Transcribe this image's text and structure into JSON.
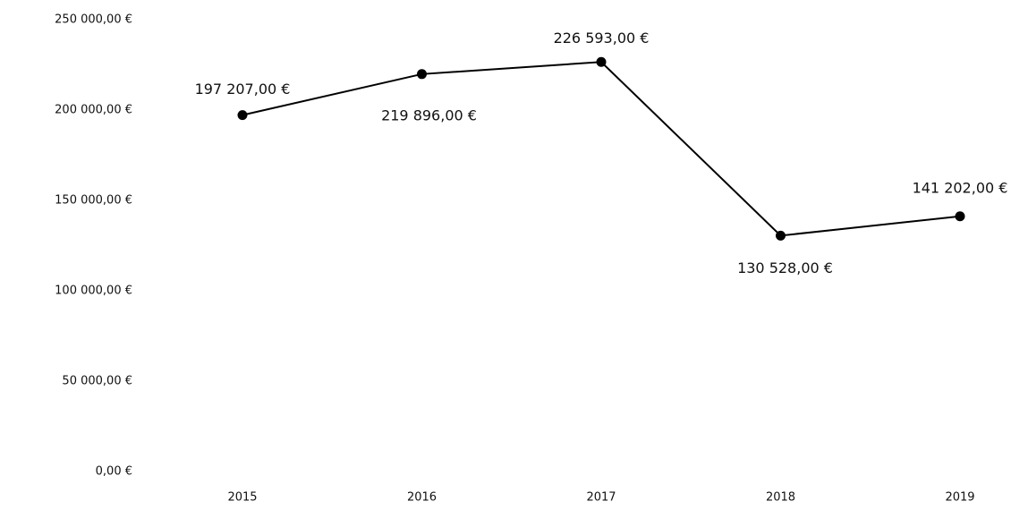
{
  "chart_data": {
    "type": "line",
    "categories": [
      "2015",
      "2016",
      "2017",
      "2018",
      "2019"
    ],
    "series": [
      {
        "color": "#000000",
        "values": [
          197207,
          219896,
          226593,
          130528,
          141202
        ],
        "value_labels": [
          "197 207,00 €",
          "219 896,00 €",
          "226 593,00 €",
          "130 528,00 €",
          "141 202,00 €"
        ]
      }
    ],
    "ylim": [
      0,
      250000
    ],
    "yticks": [
      {
        "value": 0,
        "label": "0,00 €"
      },
      {
        "value": 50000,
        "label": "50 000,00 €"
      },
      {
        "value": 100000,
        "label": "100 000,00 €"
      },
      {
        "value": 150000,
        "label": "150 000,00 €"
      },
      {
        "value": 200000,
        "label": "200 000,00 €"
      },
      {
        "value": 250000,
        "label": "250 000,00 €"
      }
    ],
    "grid": false
  }
}
